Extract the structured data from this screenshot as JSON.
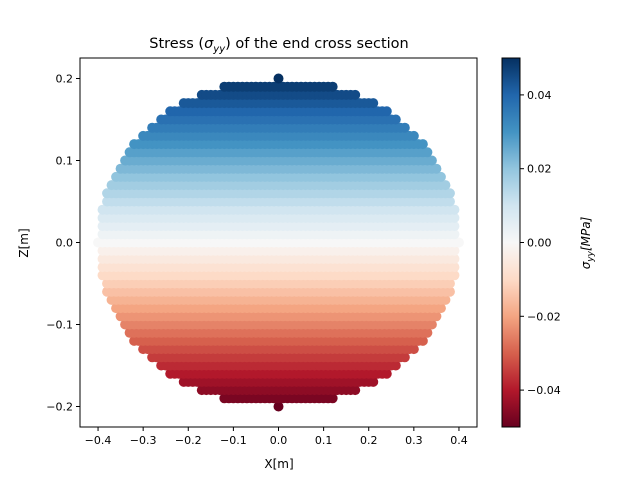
{
  "chart_data": {
    "type": "scatter",
    "title_text": "Stress (",
    "title_symbol": "σ",
    "title_subscript": "yy",
    "title_suffix": ") of the end cross section",
    "xlabel": "X[m]",
    "ylabel": "Z[m]",
    "xlim": [
      -0.44,
      0.44
    ],
    "ylim": [
      -0.225,
      0.225
    ],
    "xticks": [
      -0.4,
      -0.3,
      -0.2,
      -0.1,
      0.0,
      0.1,
      0.2,
      0.3,
      0.4
    ],
    "xtick_labels": [
      "−0.4",
      "−0.3",
      "−0.2",
      "−0.1",
      "0.0",
      "0.1",
      "0.2",
      "0.3",
      "0.4"
    ],
    "yticks": [
      -0.2,
      -0.1,
      0.0,
      0.1,
      0.2
    ],
    "ytick_labels": [
      "−0.2",
      "−0.1",
      "0.0",
      "0.1",
      "0.2"
    ],
    "shape": "ellipse",
    "x_semi_axis": 0.4,
    "z_semi_axis": 0.2,
    "point_spacing_x": 0.01,
    "point_spacing_z": 0.01,
    "stress_relation": "sigma_yy = 0.25 * Z",
    "grid": false,
    "colormap": "RdBu",
    "colorbar": {
      "label_symbol": "σ",
      "label_subscript": "yy",
      "label_unit": "[MPa]",
      "range": [
        -0.05,
        0.05
      ],
      "ticks": [
        -0.04,
        -0.02,
        0.0,
        0.02,
        0.04
      ],
      "tick_labels": [
        "−0.04",
        "−0.02",
        "0.00",
        "0.02",
        "0.04"
      ]
    }
  }
}
